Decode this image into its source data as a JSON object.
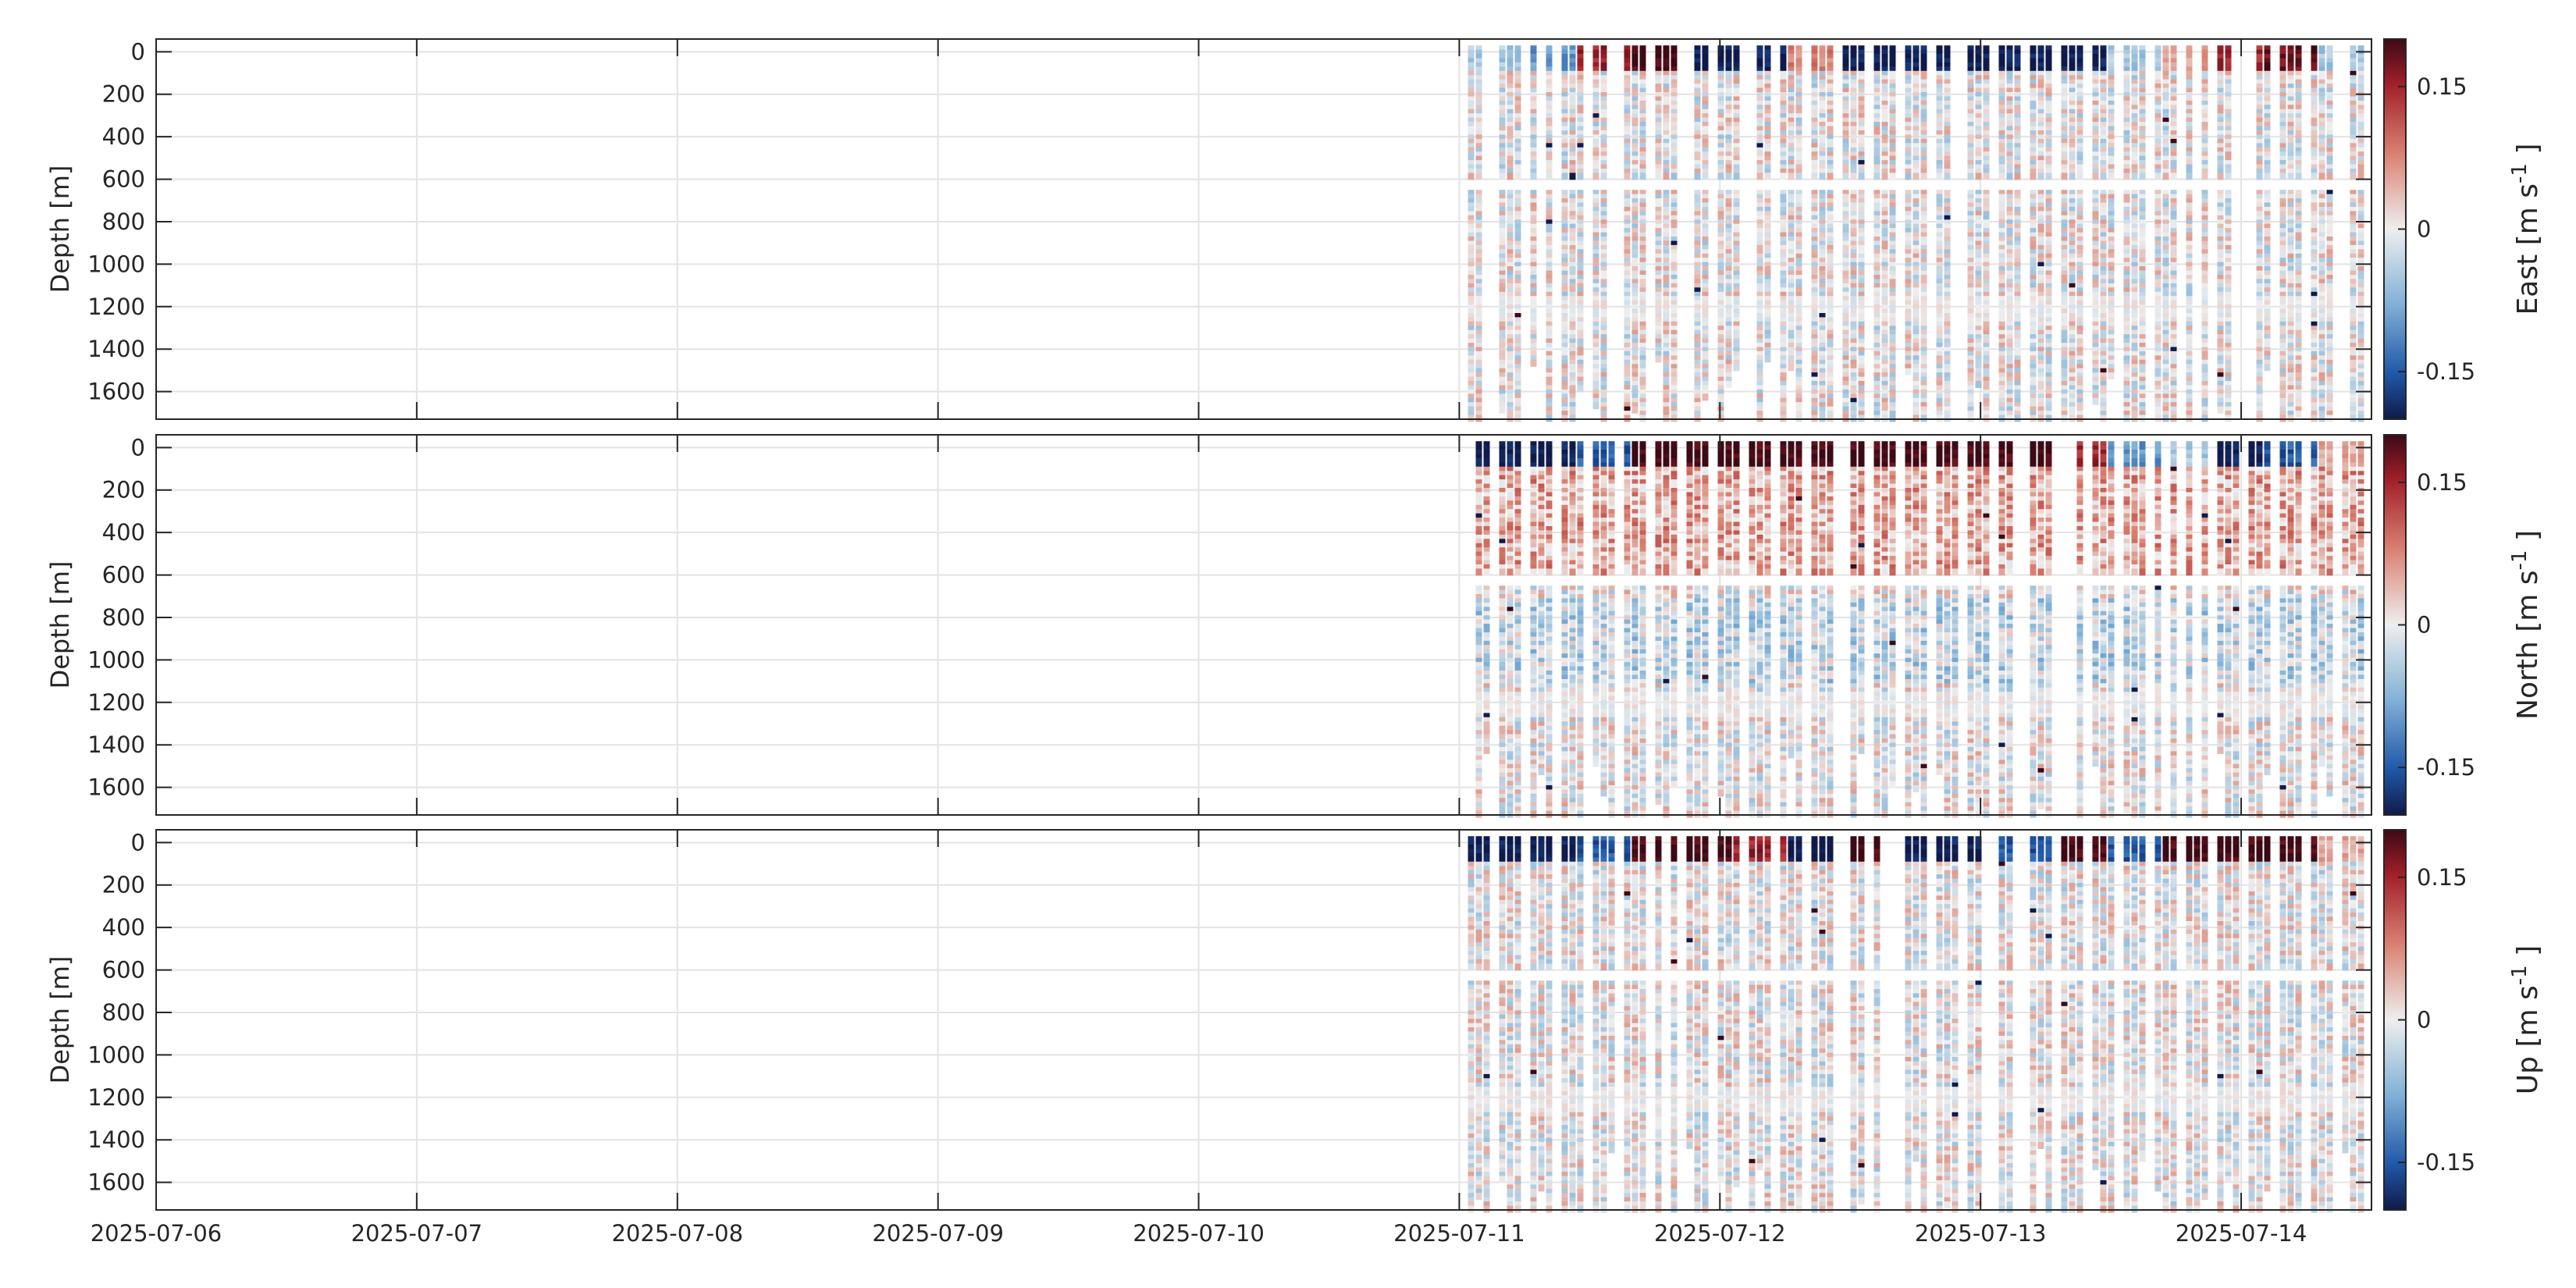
{
  "chart_data": [
    {
      "type": "heatmap",
      "colorbar_label": "East [m s",
      "colorbar_label_sup": "-1",
      "colorbar_label_end": "]",
      "ylabel": "Depth [m]",
      "y_ticks": [
        0,
        200,
        400,
        600,
        800,
        1000,
        1200,
        1400,
        1600
      ],
      "ylim": [
        1730,
        -60
      ],
      "y_reversed": true,
      "x_ticks": [
        "2025-07-06",
        "2025-07-07",
        "2025-07-08",
        "2025-07-09",
        "2025-07-10",
        "2025-07-11",
        "2025-07-12",
        "2025-07-13",
        "2025-07-14"
      ],
      "xlim": [
        "2025-07-06",
        "2025-07-14T12:00"
      ],
      "data_start": "2025-07-11T00:48",
      "data_end": "2025-07-14T11:50",
      "color_limits": [
        -0.2,
        0.2
      ],
      "colorbar_ticks": [
        0.15,
        0,
        -0.15
      ],
      "colormap": "diverging blue-white-red",
      "grid": true,
      "surface_signal": [
        -0.05,
        -0.1,
        0.15,
        0.2,
        -0.2,
        -0.2,
        0.08,
        -0.2,
        -0.2,
        -0.2,
        -0.2,
        -0.2,
        -0.05,
        0.06,
        0.15,
        0.18,
        -0.05
      ]
    },
    {
      "type": "heatmap",
      "colorbar_label": "North [m s",
      "colorbar_label_sup": "-1",
      "colorbar_label_end": "]",
      "ylabel": "Depth [m]",
      "y_ticks": [
        0,
        200,
        400,
        600,
        800,
        1000,
        1200,
        1400,
        1600
      ],
      "ylim": [
        1730,
        -60
      ],
      "y_reversed": true,
      "x_ticks": [
        "2025-07-06",
        "2025-07-07",
        "2025-07-08",
        "2025-07-09",
        "2025-07-10",
        "2025-07-11",
        "2025-07-12",
        "2025-07-13",
        "2025-07-14"
      ],
      "xlim": [
        "2025-07-06",
        "2025-07-14T12:00"
      ],
      "data_start": "2025-07-11T00:48",
      "data_end": "2025-07-14T11:50",
      "color_limits": [
        -0.2,
        0.2
      ],
      "colorbar_ticks": [
        0.15,
        0,
        -0.15
      ],
      "colormap": "diverging blue-white-red",
      "grid": true,
      "surface_signal": [
        -0.2,
        -0.2,
        -0.15,
        0.2,
        0.2,
        0.2,
        0.2,
        0.2,
        0.2,
        0.2,
        0.2,
        0.15,
        -0.1,
        -0.05,
        -0.2,
        -0.15,
        0.05
      ]
    },
    {
      "type": "heatmap",
      "colorbar_label": "Up [m s",
      "colorbar_label_sup": "-1",
      "colorbar_label_end": "]",
      "ylabel": "Depth [m]",
      "y_ticks": [
        0,
        200,
        400,
        600,
        800,
        1000,
        1200,
        1400,
        1600
      ],
      "ylim": [
        1730,
        -60
      ],
      "y_reversed": true,
      "x_ticks": [
        "2025-07-06",
        "2025-07-07",
        "2025-07-08",
        "2025-07-09",
        "2025-07-10",
        "2025-07-11",
        "2025-07-12",
        "2025-07-13",
        "2025-07-14"
      ],
      "xlim": [
        "2025-07-06",
        "2025-07-14T12:00"
      ],
      "data_start": "2025-07-11T00:48",
      "data_end": "2025-07-14T11:50",
      "color_limits": [
        -0.2,
        0.2
      ],
      "colorbar_ticks": [
        0.15,
        0,
        -0.15
      ],
      "colormap": "diverging blue-white-red",
      "grid": true,
      "surface_signal": [
        -0.2,
        -0.2,
        -0.15,
        0.2,
        0.2,
        0.15,
        -0.2,
        0.2,
        -0.2,
        -0.2,
        -0.15,
        0.2,
        -0.15,
        0.2,
        0.2,
        0.2,
        0.05
      ]
    }
  ]
}
